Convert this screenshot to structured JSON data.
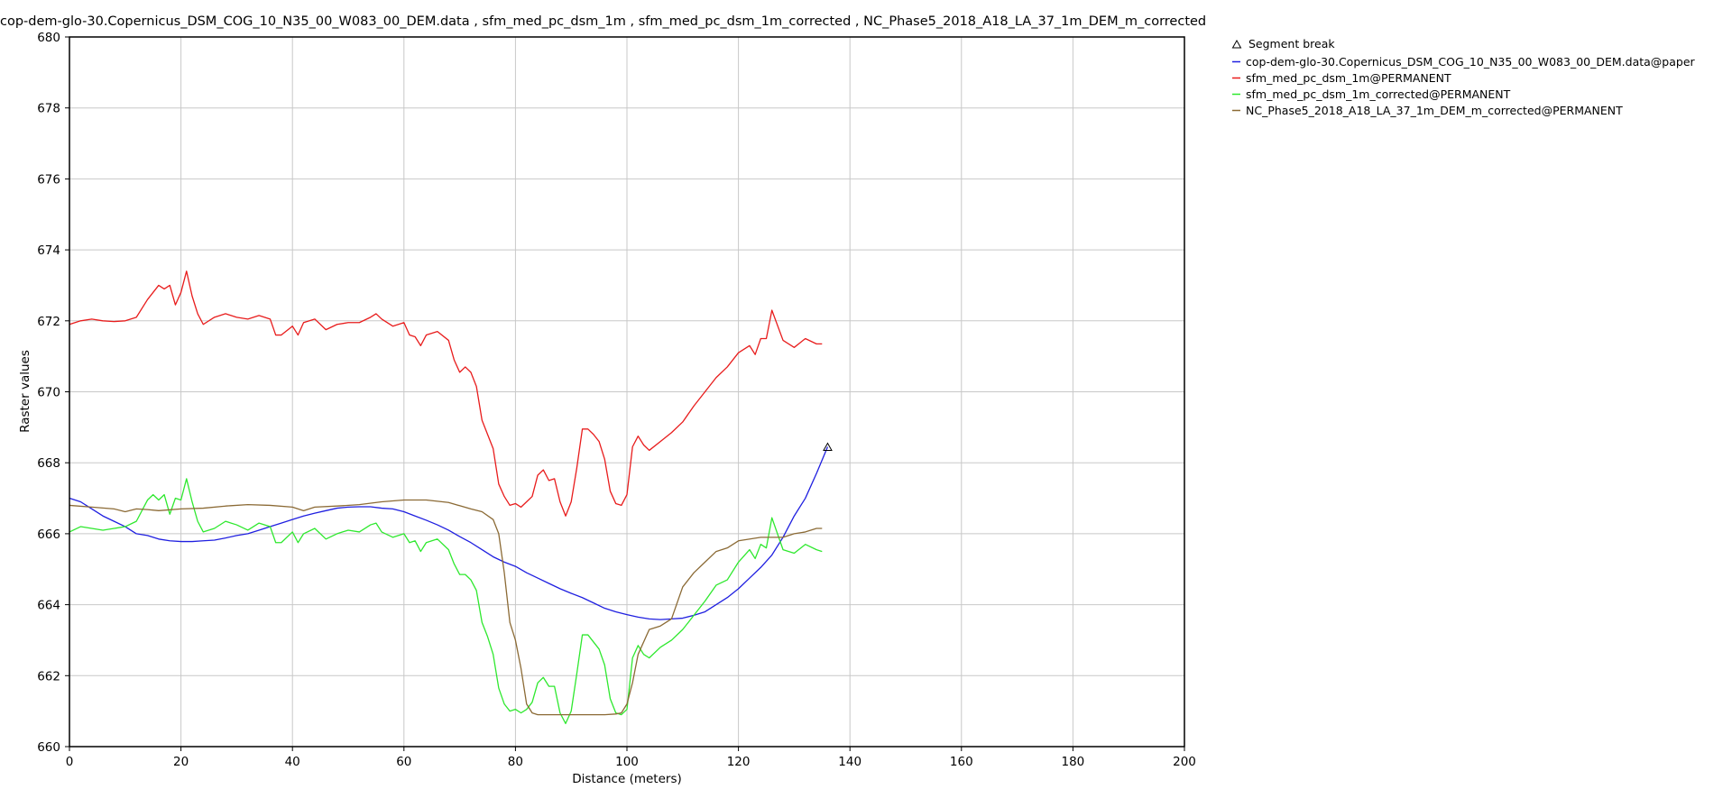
{
  "chart_data": {
    "type": "line",
    "title": "cop-dem-glo-30.Copernicus_DSM_COG_10_N35_00_W083_00_DEM.data , sfm_med_pc_dsm_1m , sfm_med_pc_dsm_1m_corrected , NC_Phase5_2018_A18_LA_37_1m_DEM_m_corrected",
    "xlabel": "Distance (meters)",
    "ylabel": "Raster values",
    "xlim": [
      0,
      200
    ],
    "ylim": [
      660,
      680
    ],
    "xticks": [
      0,
      20,
      40,
      60,
      80,
      100,
      120,
      140,
      160,
      180,
      200
    ],
    "yticks": [
      660,
      662,
      664,
      666,
      668,
      670,
      672,
      674,
      676,
      678,
      680
    ],
    "grid": true,
    "legend_position": "outside-right-top",
    "segment_break": {
      "label": "Segment break",
      "x": 136,
      "y": 668.45
    },
    "series": [
      {
        "name": "cop-dem-glo-30.Copernicus_DSM_COG_10_N35_00_W083_00_DEM.data@paper",
        "color": "#1f1fe0",
        "x": [
          0,
          2,
          4,
          6,
          8,
          10,
          12,
          14,
          16,
          18,
          20,
          22,
          24,
          26,
          28,
          30,
          32,
          34,
          36,
          38,
          40,
          42,
          44,
          46,
          48,
          50,
          52,
          54,
          56,
          58,
          60,
          62,
          64,
          66,
          68,
          70,
          72,
          74,
          76,
          78,
          80,
          82,
          84,
          86,
          88,
          90,
          92,
          94,
          96,
          98,
          100,
          102,
          104,
          106,
          108,
          110,
          112,
          114,
          116,
          118,
          120,
          122,
          124,
          126,
          128,
          130,
          132,
          134,
          136
        ],
        "values": [
          667.0,
          666.9,
          666.7,
          666.5,
          666.35,
          666.2,
          666.0,
          665.95,
          665.85,
          665.8,
          665.78,
          665.78,
          665.8,
          665.82,
          665.88,
          665.95,
          666.0,
          666.1,
          666.2,
          666.3,
          666.4,
          666.5,
          666.58,
          666.65,
          666.72,
          666.75,
          666.76,
          666.76,
          666.72,
          666.7,
          666.62,
          666.5,
          666.38,
          666.25,
          666.1,
          665.92,
          665.75,
          665.55,
          665.35,
          665.2,
          665.08,
          664.9,
          664.75,
          664.6,
          664.45,
          664.32,
          664.2,
          664.05,
          663.9,
          663.8,
          663.72,
          663.65,
          663.6,
          663.58,
          663.6,
          663.62,
          663.7,
          663.8,
          664.0,
          664.2,
          664.45,
          664.75,
          665.05,
          665.4,
          665.9,
          666.5,
          667.0,
          667.7,
          668.45
        ]
      },
      {
        "name": "sfm_med_pc_dsm_1m@PERMANENT",
        "color": "#e81c1c",
        "x": [
          0,
          2,
          4,
          6,
          8,
          10,
          12,
          14,
          15,
          16,
          17,
          18,
          19,
          20,
          21,
          22,
          23,
          24,
          26,
          28,
          30,
          32,
          34,
          36,
          37,
          38,
          40,
          41,
          42,
          44,
          46,
          48,
          50,
          52,
          54,
          55,
          56,
          58,
          60,
          61,
          62,
          63,
          64,
          66,
          68,
          69,
          70,
          71,
          72,
          73,
          74,
          75,
          76,
          77,
          78,
          79,
          80,
          81,
          82,
          83,
          84,
          85,
          86,
          87,
          88,
          89,
          90,
          91,
          92,
          93,
          94,
          95,
          96,
          97,
          98,
          99,
          100,
          101,
          102,
          103,
          104,
          106,
          108,
          110,
          112,
          114,
          116,
          118,
          120,
          122,
          123,
          124,
          125,
          126,
          128,
          130,
          132,
          134,
          135
        ],
        "values": [
          671.9,
          672.0,
          672.05,
          672.0,
          671.98,
          672.0,
          672.1,
          672.6,
          672.8,
          673.0,
          672.9,
          673.0,
          672.45,
          672.8,
          673.4,
          672.7,
          672.2,
          671.9,
          672.1,
          672.2,
          672.1,
          672.05,
          672.15,
          672.05,
          671.6,
          671.6,
          671.85,
          671.6,
          671.95,
          672.05,
          671.75,
          671.9,
          671.95,
          671.95,
          672.1,
          672.2,
          672.05,
          671.85,
          671.95,
          671.6,
          671.55,
          671.3,
          671.6,
          671.7,
          671.45,
          670.9,
          670.55,
          670.7,
          670.55,
          670.15,
          669.2,
          668.8,
          668.4,
          667.4,
          667.05,
          666.8,
          666.85,
          666.75,
          666.9,
          667.05,
          667.65,
          667.8,
          667.5,
          667.55,
          666.9,
          666.5,
          666.9,
          667.85,
          668.95,
          668.95,
          668.8,
          668.6,
          668.1,
          667.2,
          666.85,
          666.8,
          667.1,
          668.45,
          668.75,
          668.5,
          668.35,
          668.6,
          668.85,
          669.15,
          669.6,
          670.0,
          670.4,
          670.7,
          671.1,
          671.3,
          671.05,
          671.5,
          671.5,
          672.3,
          671.45,
          671.25,
          671.5,
          671.35,
          671.35
        ]
      },
      {
        "name": "sfm_med_pc_dsm_1m_corrected@PERMANENT",
        "color": "#2ee82e",
        "x": [
          0,
          2,
          4,
          6,
          8,
          10,
          12,
          14,
          15,
          16,
          17,
          18,
          19,
          20,
          21,
          22,
          23,
          24,
          26,
          28,
          30,
          32,
          34,
          36,
          37,
          38,
          40,
          41,
          42,
          44,
          46,
          48,
          50,
          52,
          54,
          55,
          56,
          58,
          60,
          61,
          62,
          63,
          64,
          66,
          68,
          69,
          70,
          71,
          72,
          73,
          74,
          75,
          76,
          77,
          78,
          79,
          80,
          81,
          82,
          83,
          84,
          85,
          86,
          87,
          88,
          89,
          90,
          91,
          92,
          93,
          94,
          95,
          96,
          97,
          98,
          99,
          100,
          101,
          102,
          103,
          104,
          106,
          108,
          110,
          112,
          114,
          116,
          118,
          120,
          122,
          123,
          124,
          125,
          126,
          128,
          130,
          132,
          134,
          135
        ],
        "values": [
          666.05,
          666.2,
          666.15,
          666.1,
          666.15,
          666.2,
          666.35,
          666.95,
          667.1,
          666.95,
          667.1,
          666.55,
          667.0,
          666.95,
          667.55,
          666.9,
          666.35,
          666.05,
          666.15,
          666.35,
          666.25,
          666.1,
          666.3,
          666.2,
          665.75,
          665.75,
          666.05,
          665.75,
          666.0,
          666.15,
          665.85,
          666.0,
          666.1,
          666.05,
          666.25,
          666.3,
          666.05,
          665.9,
          666.0,
          665.75,
          665.8,
          665.5,
          665.75,
          665.85,
          665.55,
          665.15,
          664.85,
          664.85,
          664.7,
          664.4,
          663.5,
          663.1,
          662.6,
          661.65,
          661.2,
          661.0,
          661.05,
          660.95,
          661.05,
          661.25,
          661.8,
          661.95,
          661.7,
          661.7,
          660.95,
          660.65,
          661.0,
          662.05,
          663.15,
          663.15,
          662.95,
          662.75,
          662.3,
          661.35,
          660.95,
          660.9,
          661.05,
          662.5,
          662.85,
          662.6,
          662.5,
          662.8,
          663.0,
          663.3,
          663.7,
          664.1,
          664.55,
          664.7,
          665.2,
          665.55,
          665.3,
          665.7,
          665.6,
          666.45,
          665.55,
          665.45,
          665.7,
          665.55,
          665.5
        ]
      },
      {
        "name": "NC_Phase5_2018_A18_LA_37_1m_DEM_m_corrected@PERMANENT",
        "color": "#8b6a35",
        "x": [
          0,
          4,
          8,
          10,
          12,
          14,
          16,
          20,
          24,
          28,
          32,
          36,
          40,
          42,
          44,
          48,
          52,
          56,
          60,
          64,
          68,
          72,
          74,
          76,
          77,
          78,
          79,
          80,
          81,
          82,
          83,
          84,
          86,
          88,
          90,
          92,
          94,
          96,
          98,
          99,
          100,
          101,
          102,
          104,
          106,
          108,
          110,
          112,
          114,
          116,
          118,
          120,
          124,
          128,
          130,
          132,
          134,
          135
        ],
        "values": [
          666.8,
          666.75,
          666.7,
          666.62,
          666.7,
          666.68,
          666.65,
          666.7,
          666.72,
          666.78,
          666.82,
          666.8,
          666.75,
          666.65,
          666.75,
          666.78,
          666.82,
          666.9,
          666.95,
          666.95,
          666.88,
          666.7,
          666.62,
          666.4,
          666.0,
          664.9,
          663.5,
          663.0,
          662.2,
          661.2,
          660.95,
          660.9,
          660.9,
          660.9,
          660.9,
          660.9,
          660.9,
          660.9,
          660.92,
          660.95,
          661.2,
          661.8,
          662.6,
          663.3,
          663.4,
          663.6,
          664.5,
          664.9,
          665.2,
          665.5,
          665.6,
          665.8,
          665.9,
          665.9,
          666.0,
          666.05,
          666.15,
          666.15
        ]
      }
    ]
  }
}
